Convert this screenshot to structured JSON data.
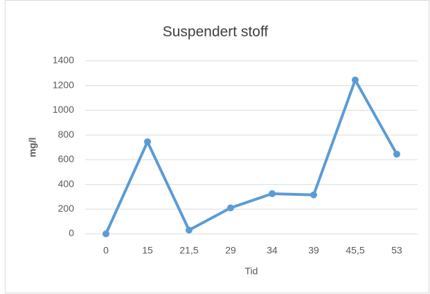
{
  "chart_data": {
    "type": "line",
    "title": "Suspendert stoff",
    "x_label": "Tid",
    "y_label": "mg/l",
    "categories": [
      "0",
      "15",
      "21,5",
      "29",
      "34",
      "39",
      "45,5",
      "53"
    ],
    "values": [
      0,
      745,
      30,
      210,
      325,
      315,
      1245,
      645
    ],
    "color": "#5b9bd5",
    "ylim": [
      0,
      1400
    ],
    "yticks": [
      0,
      200,
      400,
      600,
      800,
      1000,
      1200,
      1400
    ],
    "grid": true
  }
}
